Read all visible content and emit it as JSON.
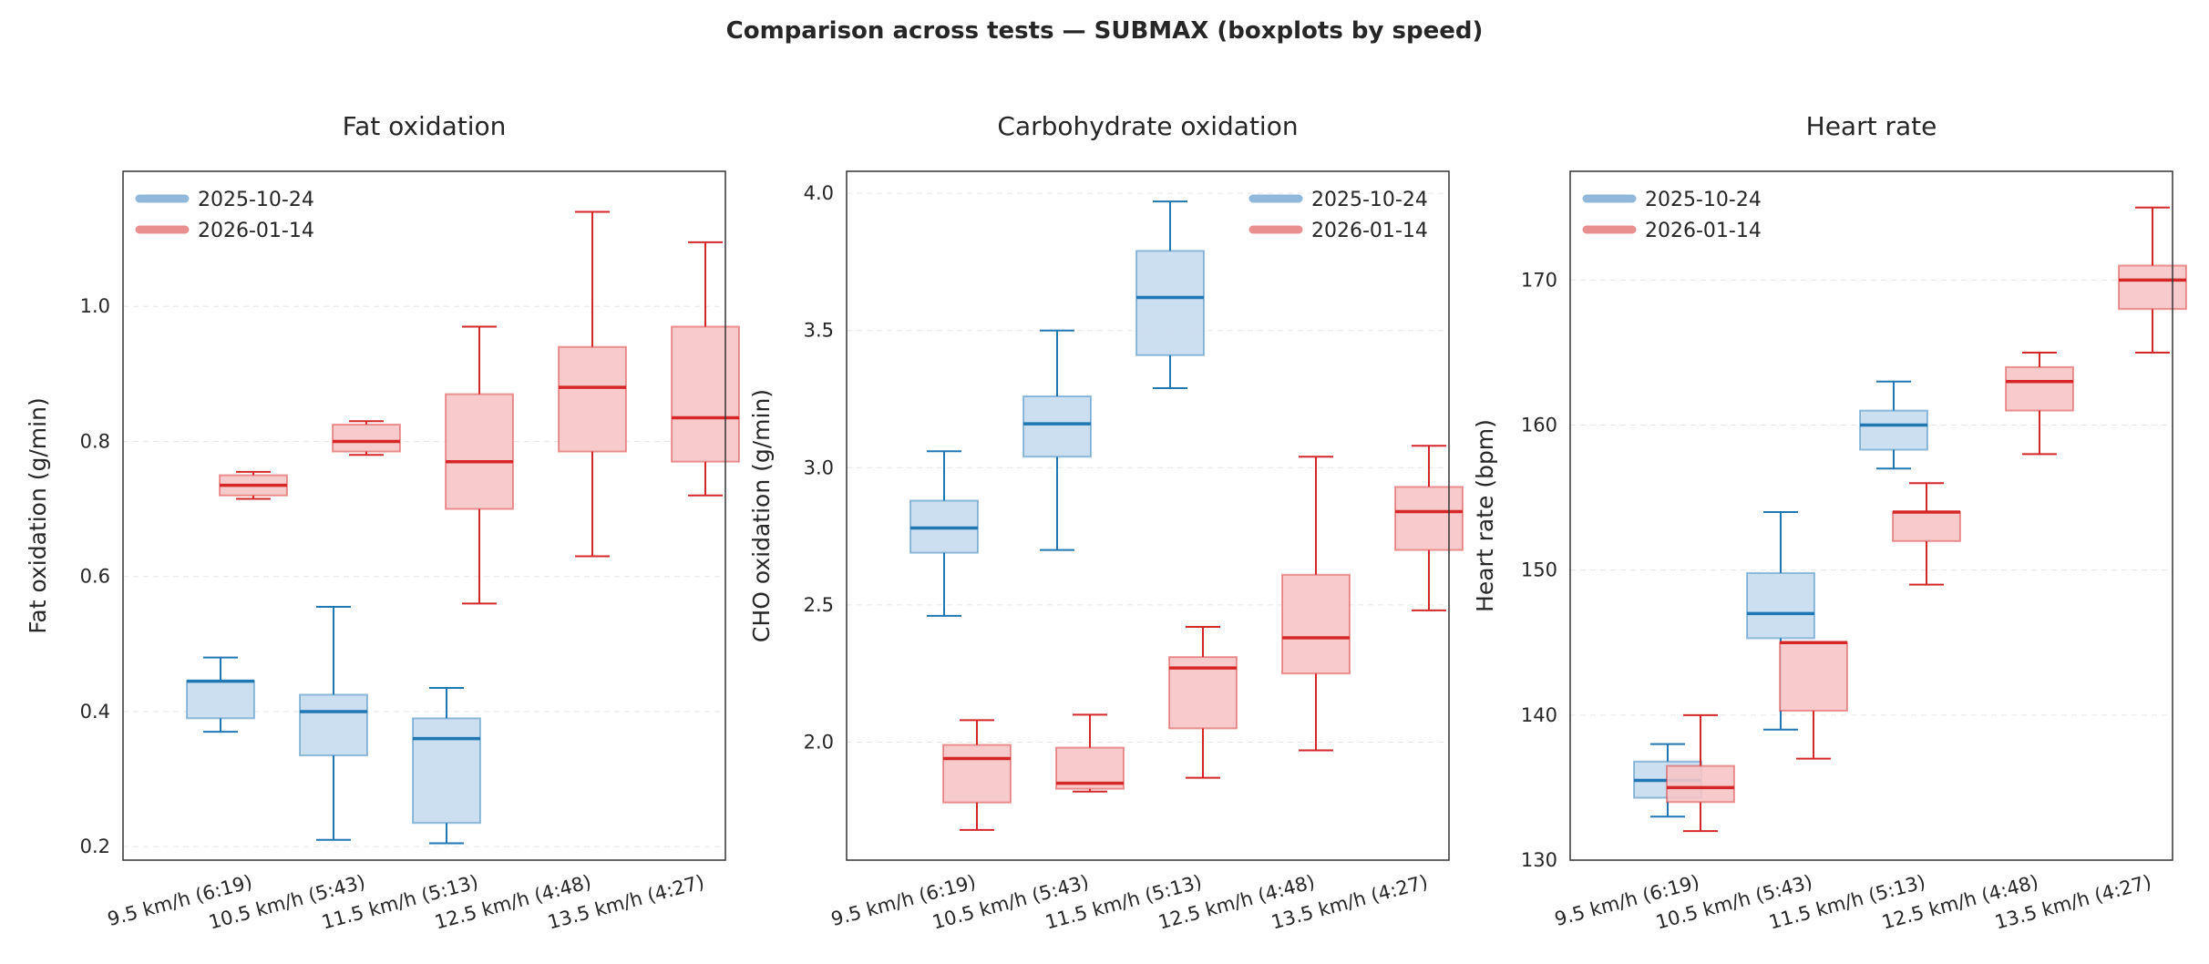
{
  "figure": {
    "title": "Comparison across tests — SUBMAX (boxplots by speed)"
  },
  "colors": {
    "test1": "#1f77b4",
    "test1_fill": "#c6dbef",
    "test1_legend": "#8fb8da",
    "test2": "#d62728",
    "test2_fill": "#f6c5c6",
    "test2_legend": "#ea8f90"
  },
  "chart_data": [
    {
      "type": "boxplot",
      "title": "Fat oxidation",
      "ylabel": "Fat oxidation (g/min)",
      "ylim": [
        0.18,
        1.2
      ],
      "yticks": [
        "0.2",
        "0.4",
        "0.6",
        "0.8",
        "1.0"
      ],
      "ytick_values": [
        0.2,
        0.4,
        0.6,
        0.8,
        1.0
      ],
      "grid": true,
      "legend_position": "top-left",
      "categories": [
        "9.5 km/h (6:19)",
        "10.5 km/h (5:43)",
        "11.5 km/h (5:13)",
        "12.5 km/h (4:48)",
        "13.5 km/h (4:27)"
      ],
      "series": [
        {
          "name": "2025-10-24",
          "boxes": [
            {
              "category": "9.5 km/h (6:19)",
              "min": 0.37,
              "q1": 0.39,
              "median": 0.445,
              "q3": 0.445,
              "max": 0.48
            },
            {
              "category": "10.5 km/h (5:43)",
              "min": 0.21,
              "q1": 0.335,
              "median": 0.4,
              "q3": 0.425,
              "max": 0.555
            },
            {
              "category": "11.5 km/h (5:13)",
              "min": 0.205,
              "q1": 0.235,
              "median": 0.36,
              "q3": 0.39,
              "max": 0.435
            }
          ]
        },
        {
          "name": "2026-01-14",
          "boxes": [
            {
              "category": "9.5 km/h (6:19)",
              "min": 0.715,
              "q1": 0.72,
              "median": 0.735,
              "q3": 0.75,
              "max": 0.755
            },
            {
              "category": "10.5 km/h (5:43)",
              "min": 0.78,
              "q1": 0.785,
              "median": 0.8,
              "q3": 0.825,
              "max": 0.83
            },
            {
              "category": "11.5 km/h (5:13)",
              "min": 0.56,
              "q1": 0.7,
              "median": 0.77,
              "q3": 0.87,
              "max": 0.97
            },
            {
              "category": "12.5 km/h (4:48)",
              "min": 0.63,
              "q1": 0.785,
              "median": 0.88,
              "q3": 0.94,
              "max": 1.14
            },
            {
              "category": "13.5 km/h (4:27)",
              "min": 0.72,
              "q1": 0.77,
              "median": 0.835,
              "q3": 0.97,
              "max": 1.095
            }
          ]
        }
      ]
    },
    {
      "type": "boxplot",
      "title": "Carbohydrate oxidation",
      "ylabel": "CHO oxidation (g/min)",
      "ylim": [
        1.57,
        4.08
      ],
      "yticks": [
        "2.0",
        "2.5",
        "3.0",
        "3.5",
        "4.0"
      ],
      "ytick_values": [
        2.0,
        2.5,
        3.0,
        3.5,
        4.0
      ],
      "grid": true,
      "legend_position": "top-right",
      "categories": [
        "9.5 km/h (6:19)",
        "10.5 km/h (5:43)",
        "11.5 km/h (5:13)",
        "12.5 km/h (4:48)",
        "13.5 km/h (4:27)"
      ],
      "series": [
        {
          "name": "2025-10-24",
          "boxes": [
            {
              "category": "9.5 km/h (6:19)",
              "min": 2.46,
              "q1": 2.69,
              "median": 2.78,
              "q3": 2.88,
              "max": 3.06
            },
            {
              "category": "10.5 km/h (5:43)",
              "min": 2.7,
              "q1": 3.04,
              "median": 3.16,
              "q3": 3.26,
              "max": 3.5
            },
            {
              "category": "11.5 km/h (5:13)",
              "min": 3.29,
              "q1": 3.41,
              "median": 3.62,
              "q3": 3.79,
              "max": 3.97
            }
          ]
        },
        {
          "name": "2026-01-14",
          "boxes": [
            {
              "category": "9.5 km/h (6:19)",
              "min": 1.68,
              "q1": 1.78,
              "median": 1.94,
              "q3": 1.99,
              "max": 2.08
            },
            {
              "category": "10.5 km/h (5:43)",
              "min": 1.82,
              "q1": 1.83,
              "median": 1.85,
              "q3": 1.98,
              "max": 2.1
            },
            {
              "category": "11.5 km/h (5:13)",
              "min": 1.87,
              "q1": 2.05,
              "median": 2.27,
              "q3": 2.31,
              "max": 2.42
            },
            {
              "category": "12.5 km/h (4:48)",
              "min": 1.97,
              "q1": 2.25,
              "median": 2.38,
              "q3": 2.61,
              "max": 3.04
            },
            {
              "category": "13.5 km/h (4:27)",
              "min": 2.48,
              "q1": 2.7,
              "median": 2.84,
              "q3": 2.93,
              "max": 3.08
            }
          ]
        }
      ]
    },
    {
      "type": "boxplot",
      "title": "Heart rate",
      "ylabel": "Heart rate (bpm)",
      "ylim": [
        130,
        177.5
      ],
      "yticks": [
        "130",
        "140",
        "150",
        "160",
        "170"
      ],
      "ytick_values": [
        130,
        140,
        150,
        160,
        170
      ],
      "grid": true,
      "legend_position": "top-left",
      "categories": [
        "9.5 km/h (6:19)",
        "10.5 km/h (5:43)",
        "11.5 km/h (5:13)",
        "12.5 km/h (4:48)",
        "13.5 km/h (4:27)"
      ],
      "series": [
        {
          "name": "2025-10-24",
          "boxes": [
            {
              "category": "9.5 km/h (6:19)",
              "min": 133,
              "q1": 134.3,
              "median": 135.5,
              "q3": 136.8,
              "max": 138
            },
            {
              "category": "10.5 km/h (5:43)",
              "min": 139,
              "q1": 145.3,
              "median": 147,
              "q3": 149.8,
              "max": 154
            },
            {
              "category": "11.5 km/h (5:13)",
              "min": 157,
              "q1": 158.3,
              "median": 160,
              "q3": 161,
              "max": 163
            }
          ]
        },
        {
          "name": "2026-01-14",
          "boxes": [
            {
              "category": "9.5 km/h (6:19)",
              "min": 132,
              "q1": 134,
              "median": 135,
              "q3": 136.5,
              "max": 140
            },
            {
              "category": "10.5 km/h (5:43)",
              "min": 137,
              "q1": 140.3,
              "median": 145,
              "q3": 145,
              "max": 145
            },
            {
              "category": "11.5 km/h (5:13)",
              "min": 149,
              "q1": 152,
              "median": 154,
              "q3": 154,
              "max": 156
            },
            {
              "category": "12.5 km/h (4:48)",
              "min": 158,
              "q1": 161,
              "median": 163,
              "q3": 164,
              "max": 165
            },
            {
              "category": "13.5 km/h (4:27)",
              "min": 165,
              "q1": 168,
              "median": 170,
              "q3": 171,
              "max": 175
            }
          ]
        }
      ]
    }
  ]
}
